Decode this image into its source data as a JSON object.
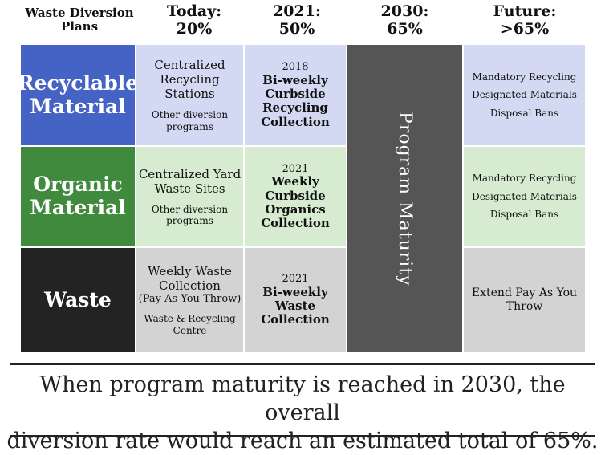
{
  "header": {
    "first": "Waste Diversion Plans",
    "columns": [
      {
        "line1": "Today:",
        "line2": "20%"
      },
      {
        "line1": "2021:",
        "line2": "50%"
      },
      {
        "line1": "2030:",
        "line2": "65%"
      },
      {
        "line1": "Future:",
        "line2": ">65%"
      }
    ]
  },
  "rows": {
    "recyclable": {
      "label": "Recyclable Material",
      "today": {
        "main": "Centralized Recycling Stations",
        "sub": "Other diversion programs"
      },
      "y2021": {
        "year": "2018",
        "bold": "Bi-weekly Curbside Recycling Collection"
      },
      "future": [
        "Mandatory Recycling",
        "Designated Materials",
        "Disposal Bans"
      ]
    },
    "organic": {
      "label": "Organic Material",
      "today": {
        "main": "Centralized Yard Waste Sites",
        "sub": "Other diversion programs"
      },
      "y2021": {
        "year": "2021",
        "bold": "Weekly Curbside Organics Collection"
      },
      "future": [
        "Mandatory Recycling",
        "Designated Materials",
        "Disposal Bans"
      ]
    },
    "waste": {
      "label": "Waste",
      "today": {
        "main": "Weekly Waste Collection",
        "main2": "(Pay As You Throw)",
        "sub": "Waste & Recycling Centre"
      },
      "y2021": {
        "year": "2021",
        "bold": "Bi-weekly Waste Collection"
      },
      "future": "Extend Pay As You Throw"
    }
  },
  "maturity": "Program Maturity",
  "footer": {
    "line1": "When program maturity is reached in 2030, the overall",
    "line2": "diversion rate would reach an estimated total of 65%."
  },
  "colors": {
    "recyclable": "#4463c4",
    "organic": "#3f8a3c",
    "waste": "#232323",
    "maturity": "#555555"
  }
}
